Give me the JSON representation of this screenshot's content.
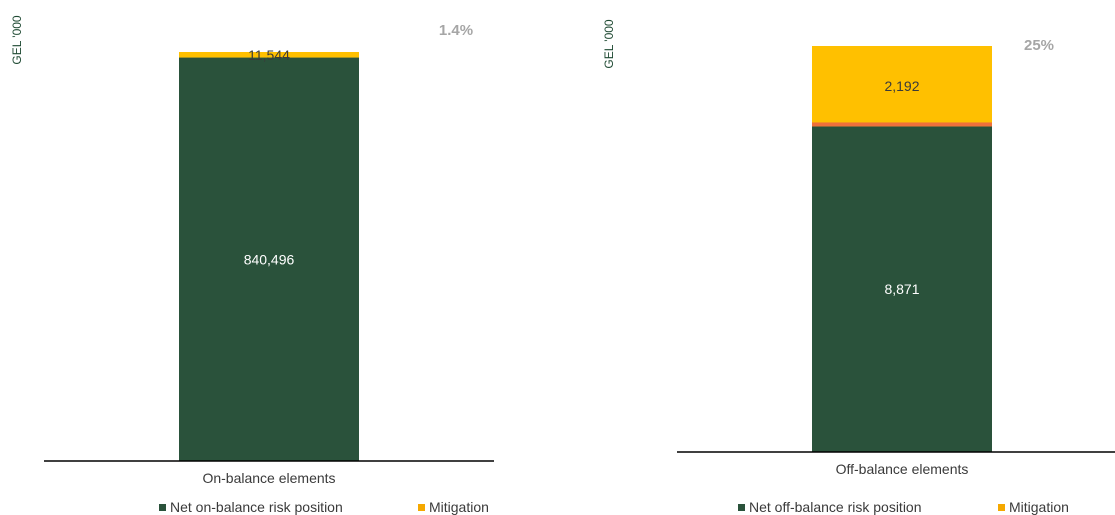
{
  "colors": {
    "net": "#2a523b",
    "mitigation": "#ffc000",
    "mitigation_legend": "#f5a800",
    "divider": "#f0703a",
    "unit": "#1f4a33",
    "pct": "#a6a6a6",
    "label_dark": "#3a3a3a",
    "label_light": "#ffffff"
  },
  "chart_data": [
    {
      "type": "bar",
      "stacked": true,
      "ylabel": "GEL '000",
      "categories": [
        "On-balance elements"
      ],
      "series": [
        {
          "name": "Net on-balance risk position",
          "values": [
            840496
          ],
          "label": "840,496"
        },
        {
          "name": "Mitigation",
          "values": [
            11544
          ],
          "label": "11,544"
        }
      ],
      "annotation": "1.4%",
      "legend": "bottom"
    },
    {
      "type": "bar",
      "stacked": true,
      "ylabel": "GEL '000",
      "categories": [
        "Off-balance elements"
      ],
      "series": [
        {
          "name": "Net off-balance risk position",
          "values": [
            8871
          ],
          "label": "8,871"
        },
        {
          "name": "Mitigation",
          "values": [
            2192
          ],
          "label": "2,192"
        }
      ],
      "annotation": "25%",
      "legend": "bottom"
    }
  ]
}
